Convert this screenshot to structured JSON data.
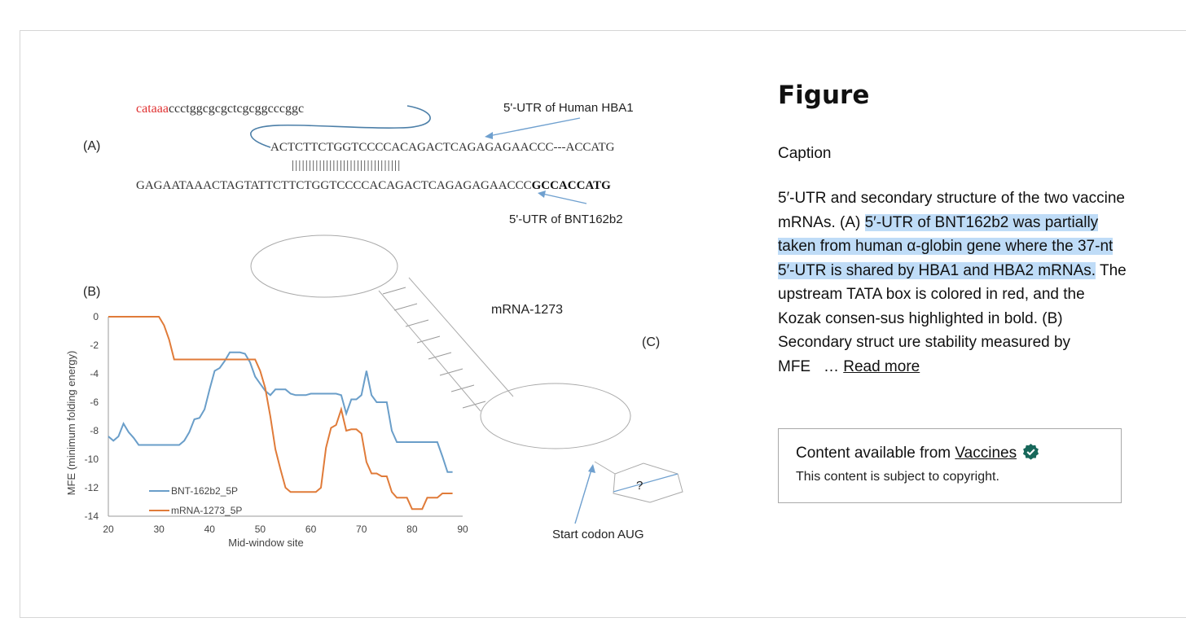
{
  "figure": {
    "panel_a": {
      "label": "(A)",
      "tata_red": "cataaa",
      "upstream_seq": "ccctggcgcgctcgcggcccggc",
      "hba1_seq": "ACTCTTCTGGTCCCCACAGACTCAGAGAGAACCC---ACCATG",
      "bars": "||||||||||||||||||||||||||||||||",
      "bnt_seq": "GAGAATAAACTAGTATTCTTCTGGTCCCCACAGACTCAGAGAGAACCC",
      "kozak_bold": "GCCACCATG",
      "hba1_label": "5'-UTR of Human HBA1",
      "bnt_label": "5'-UTR of BNT162b2"
    },
    "panel_b": {
      "label": "(B)"
    },
    "panel_c": {
      "label": "(C)",
      "title": "mRNA-1273",
      "start_codon": "Start codon AUG",
      "question": "?"
    },
    "chart_data": {
      "type": "line",
      "title": "",
      "xlabel": "Mid-window site",
      "ylabel": "MFE (minimum folding energy)",
      "xlim": [
        20,
        90
      ],
      "ylim": [
        -14,
        0
      ],
      "xticks": [
        "20",
        "30",
        "40",
        "50",
        "60",
        "70",
        "80",
        "90"
      ],
      "yticks": [
        "0",
        "-2",
        "-4",
        "-6",
        "-8",
        "-10",
        "-12",
        "-14"
      ],
      "series": [
        {
          "name": "BNT-162b2_5P",
          "color": "#6a9ec9",
          "x": [
            20,
            21,
            22,
            23,
            24,
            25,
            26,
            27,
            28,
            29,
            30,
            31,
            32,
            33,
            34,
            35,
            36,
            37,
            38,
            39,
            40,
            41,
            42,
            43,
            44,
            45,
            46,
            47,
            48,
            49,
            50,
            51,
            52,
            53,
            54,
            55,
            56,
            57,
            58,
            59,
            60,
            61,
            62,
            63,
            64,
            65,
            66,
            67,
            68,
            69,
            70,
            71,
            72,
            73,
            74,
            75,
            76,
            77,
            78,
            79,
            80,
            81,
            82,
            83,
            84,
            85,
            86,
            87,
            88
          ],
          "values": [
            -8.4,
            -8.7,
            -8.4,
            -7.5,
            -8.1,
            -8.5,
            -9.0,
            -9.0,
            -9.0,
            -9.0,
            -9.0,
            -9.0,
            -9.0,
            -9.0,
            -9.0,
            -8.7,
            -8.1,
            -7.2,
            -7.1,
            -6.5,
            -5.1,
            -3.8,
            -3.6,
            -3.1,
            -2.5,
            -2.5,
            -2.5,
            -2.6,
            -3.2,
            -4.2,
            -4.7,
            -5.2,
            -5.5,
            -5.1,
            -5.1,
            -5.1,
            -5.4,
            -5.5,
            -5.5,
            -5.5,
            -5.4,
            -5.4,
            -5.4,
            -5.4,
            -5.4,
            -5.4,
            -5.5,
            -6.8,
            -5.8,
            -5.8,
            -5.5,
            -3.8,
            -5.5,
            -6.0,
            -6.0,
            -6.0,
            -8.0,
            -8.8,
            -8.8,
            -8.8,
            -8.8,
            -8.8,
            -8.8,
            -8.8,
            -8.8,
            -8.8,
            -9.8,
            -10.9,
            -10.9
          ]
        },
        {
          "name": "mRNA-1273_5P",
          "color": "#e07b39",
          "x": [
            20,
            21,
            22,
            23,
            24,
            25,
            26,
            27,
            28,
            29,
            30,
            31,
            32,
            33,
            34,
            35,
            36,
            37,
            38,
            39,
            40,
            41,
            42,
            43,
            44,
            45,
            46,
            47,
            48,
            49,
            50,
            51,
            52,
            53,
            54,
            55,
            56,
            57,
            58,
            59,
            60,
            61,
            62,
            63,
            64,
            65,
            66,
            67,
            68,
            69,
            70,
            71,
            72,
            73,
            74,
            75,
            76,
            77,
            78,
            79,
            80,
            81,
            82,
            83,
            84,
            85,
            86,
            87,
            88
          ],
          "values": [
            0,
            0,
            0,
            0,
            0,
            0,
            0,
            0,
            0,
            0,
            0,
            -0.6,
            -1.6,
            -3.0,
            -3.0,
            -3.0,
            -3.0,
            -3.0,
            -3.0,
            -3.0,
            -3.0,
            -3.0,
            -3.0,
            -3.0,
            -3.0,
            -3.0,
            -3.0,
            -3.0,
            -3.0,
            -3.0,
            -3.8,
            -5.0,
            -7.0,
            -9.3,
            -10.7,
            -12.0,
            -12.3,
            -12.3,
            -12.3,
            -12.3,
            -12.3,
            -12.3,
            -12.0,
            -9.2,
            -7.8,
            -7.6,
            -6.5,
            -8.0,
            -7.9,
            -7.9,
            -8.2,
            -10.2,
            -11.0,
            -11.0,
            -11.2,
            -11.2,
            -12.3,
            -12.7,
            -12.7,
            -12.7,
            -13.5,
            -13.5,
            -13.5,
            -12.7,
            -12.7,
            -12.7,
            -12.4,
            -12.4,
            -12.4
          ]
        }
      ],
      "legend": "bottom-left"
    }
  },
  "sidebar": {
    "title": "Figure",
    "caption_label": "Caption",
    "caption_plain_1": "5′-UTR and secondary structure of the two vaccine mRNAs. (A) ",
    "caption_highlight": "5′-UTR of BNT162b2 was partially taken from human α-globin gene where the 37-nt 5′-UTR is shared by HBA1 and HBA2 mRNAs.",
    "caption_plain_2": " The upstream TATA box is colored in red, and the Kozak consen-sus highlighted in bold. (B) Secondary struct ure stability measured by MFE",
    "ellipsis": "… ",
    "read_more": "Read more",
    "source_prefix": "Content available from ",
    "source_link": "Vaccines",
    "copyright": "This content is subject to copyright.",
    "verified_color": "#17675a"
  }
}
